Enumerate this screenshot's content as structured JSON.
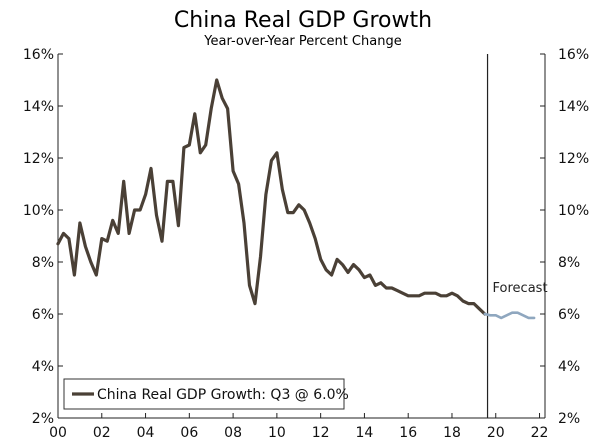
{
  "chart_data": {
    "type": "line",
    "title": "China Real GDP Growth",
    "subtitle": "Year-over-Year Percent Change",
    "xlabel": "",
    "ylabel": "",
    "x_range": [
      2000.0,
      2022.25
    ],
    "ylim": [
      2,
      16
    ],
    "y_ticks": [
      "2%",
      "4%",
      "6%",
      "8%",
      "10%",
      "12%",
      "14%",
      "16%"
    ],
    "y_tick_values": [
      2,
      4,
      6,
      8,
      10,
      12,
      14,
      16
    ],
    "x_ticks": [
      "00",
      "02",
      "04",
      "06",
      "08",
      "10",
      "12",
      "14",
      "16",
      "18",
      "20",
      "22"
    ],
    "x_tick_values": [
      2000,
      2002,
      2004,
      2006,
      2008,
      2010,
      2012,
      2014,
      2016,
      2018,
      2020,
      2022
    ],
    "forecast_start": 2019.625,
    "forecast_label": "Forecast",
    "legend": {
      "label": "China Real GDP Growth: Q3 @ 6.0%",
      "position": "bottom-left"
    },
    "colors": {
      "actual": "#4a4036",
      "forecast": "#8fa7bf",
      "axis": "#222222"
    },
    "grid": false,
    "series": [
      {
        "name": "China Real GDP Growth: Q3 @ 6.0%",
        "style": "actual",
        "x": [
          2000.0,
          2000.25,
          2000.5,
          2000.75,
          2001.0,
          2001.25,
          2001.5,
          2001.75,
          2002.0,
          2002.25,
          2002.5,
          2002.75,
          2003.0,
          2003.25,
          2003.5,
          2003.75,
          2004.0,
          2004.25,
          2004.5,
          2004.75,
          2005.0,
          2005.25,
          2005.5,
          2005.75,
          2006.0,
          2006.25,
          2006.5,
          2006.75,
          2007.0,
          2007.25,
          2007.5,
          2007.75,
          2008.0,
          2008.25,
          2008.5,
          2008.75,
          2009.0,
          2009.25,
          2009.5,
          2009.75,
          2010.0,
          2010.25,
          2010.5,
          2010.75,
          2011.0,
          2011.25,
          2011.5,
          2011.75,
          2012.0,
          2012.25,
          2012.5,
          2012.75,
          2013.0,
          2013.25,
          2013.5,
          2013.75,
          2014.0,
          2014.25,
          2014.5,
          2014.75,
          2015.0,
          2015.25,
          2015.5,
          2015.75,
          2016.0,
          2016.25,
          2016.5,
          2016.75,
          2017.0,
          2017.25,
          2017.5,
          2017.75,
          2018.0,
          2018.25,
          2018.5,
          2018.75,
          2019.0,
          2019.25,
          2019.5
        ],
        "values": [
          8.7,
          9.1,
          8.9,
          7.5,
          9.5,
          8.6,
          8.0,
          7.5,
          8.9,
          8.8,
          9.6,
          9.1,
          11.1,
          9.1,
          10.0,
          10.0,
          10.6,
          11.6,
          9.8,
          8.8,
          11.1,
          11.1,
          9.4,
          12.4,
          12.5,
          13.7,
          12.2,
          12.5,
          13.9,
          15.0,
          14.3,
          13.9,
          11.5,
          11.0,
          9.5,
          7.1,
          6.4,
          8.2,
          10.6,
          11.9,
          12.2,
          10.8,
          9.9,
          9.9,
          10.2,
          10.0,
          9.5,
          8.9,
          8.1,
          7.7,
          7.5,
          8.1,
          7.9,
          7.6,
          7.9,
          7.7,
          7.4,
          7.5,
          7.1,
          7.2,
          7.0,
          7.0,
          6.9,
          6.8,
          6.7,
          6.7,
          6.7,
          6.8,
          6.8,
          6.8,
          6.7,
          6.7,
          6.8,
          6.7,
          6.5,
          6.4,
          6.4,
          6.2,
          6.0
        ]
      },
      {
        "name": "Forecast",
        "style": "forecast",
        "x": [
          2019.5,
          2019.75,
          2020.0,
          2020.25,
          2020.5,
          2020.75,
          2021.0,
          2021.25,
          2021.5,
          2021.75
        ],
        "values": [
          6.0,
          5.95,
          5.95,
          5.85,
          5.95,
          6.05,
          6.05,
          5.95,
          5.85,
          5.85
        ]
      }
    ]
  }
}
